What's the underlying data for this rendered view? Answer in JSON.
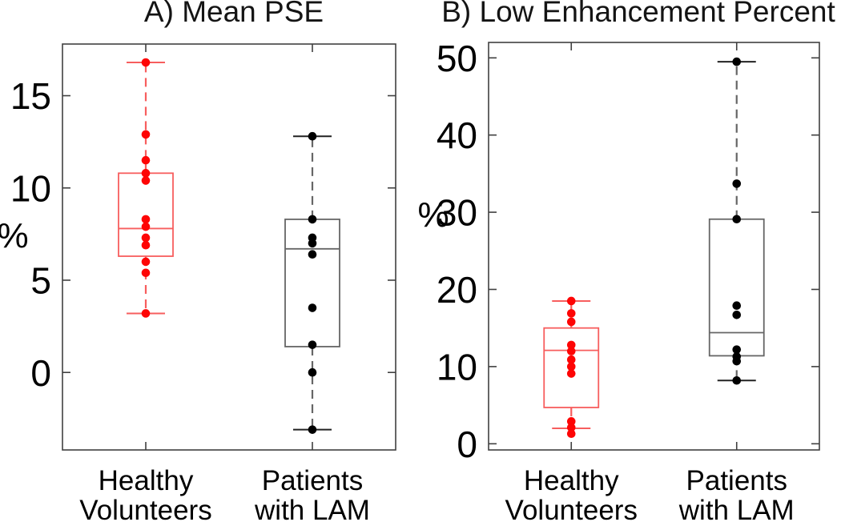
{
  "figure": {
    "background": "#ffffff",
    "axis_color": "#404040",
    "text_color": "#000000"
  },
  "chart_data": [
    {
      "type": "boxplot",
      "title": "A) Mean PSE",
      "ylabel": "%",
      "xlabel": "",
      "yticks": [
        0,
        5,
        10,
        15
      ],
      "ylim": [
        -4.2,
        17.8
      ],
      "grid": false,
      "legend": "none",
      "categories": [
        "Healthy Volunteers",
        "Patients with LAM"
      ],
      "series": [
        {
          "name": "Healthy Volunteers",
          "label_lines": [
            "Healthy",
            "Volunteers"
          ],
          "point_color": "#fe0505",
          "line_color": "#f75e5e",
          "cap_color": "#f75e5e",
          "box": {
            "q1": 6.3,
            "median": 7.8,
            "q3": 10.8,
            "whisker_low": 3.2,
            "whisker_high": 16.8
          },
          "points": [
            16.8,
            12.9,
            11.5,
            10.8,
            10.4,
            8.3,
            7.9,
            7.3,
            6.9,
            6.0,
            5.4,
            3.2
          ]
        },
        {
          "name": "Patients with LAM",
          "label_lines": [
            "Patients",
            "with LAM"
          ],
          "point_color": "#000000",
          "line_color": "#666666",
          "cap_color": "#222222",
          "box": {
            "q1": 1.4,
            "median": 6.7,
            "q3": 8.3,
            "whisker_low": -3.1,
            "whisker_high": 12.8
          },
          "points": [
            12.8,
            8.3,
            7.3,
            7.0,
            6.4,
            3.5,
            1.5,
            0.0,
            -3.1
          ]
        }
      ]
    },
    {
      "type": "boxplot",
      "title": "B) Low Enhancement Percent",
      "ylabel": "%",
      "xlabel": "",
      "yticks": [
        0,
        10,
        20,
        30,
        40,
        50
      ],
      "ylim": [
        -0.8,
        52
      ],
      "grid": false,
      "legend": "none",
      "categories": [
        "Healthy Volunteers",
        "Patients with LAM"
      ],
      "series": [
        {
          "name": "Healthy Volunteers",
          "label_lines": [
            "Healthy",
            "Volunteers"
          ],
          "point_color": "#fe0505",
          "line_color": "#f75e5e",
          "cap_color": "#f75e5e",
          "box": {
            "q1": 4.7,
            "median": 12.1,
            "q3": 15.0,
            "whisker_low": 2.0,
            "whisker_high": 18.5
          },
          "points": [
            18.5,
            16.9,
            15.8,
            12.8,
            12.0,
            10.9,
            10.0,
            9.1,
            2.9,
            2.1,
            1.3
          ]
        },
        {
          "name": "Patients with LAM",
          "label_lines": [
            "Patients",
            "with LAM"
          ],
          "point_color": "#000000",
          "line_color": "#666666",
          "cap_color": "#222222",
          "box": {
            "q1": 11.4,
            "median": 14.4,
            "q3": 29.1,
            "whisker_low": 8.2,
            "whisker_high": 49.5
          },
          "points": [
            49.5,
            33.7,
            29.1,
            17.9,
            16.7,
            12.2,
            11.3,
            10.7,
            8.2
          ]
        }
      ]
    }
  ]
}
